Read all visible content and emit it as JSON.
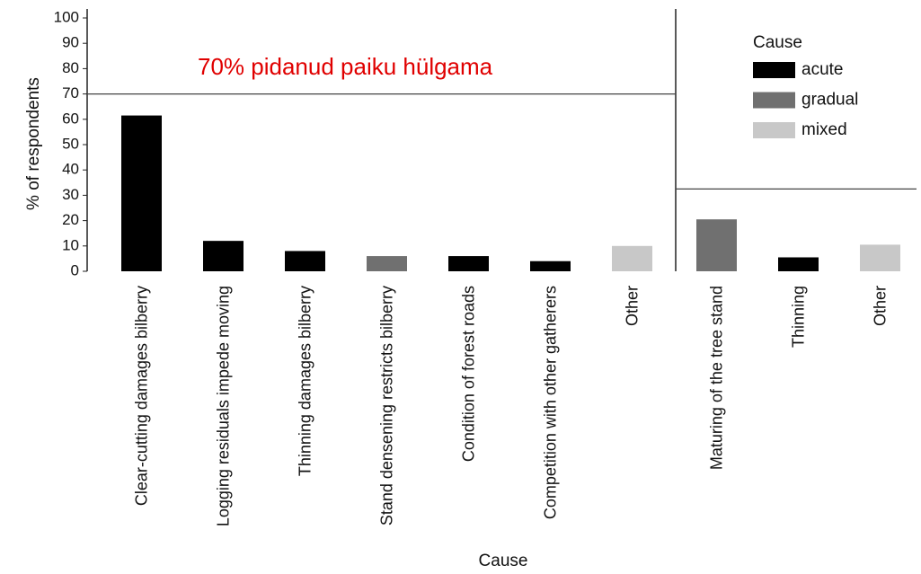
{
  "chart_data": {
    "type": "bar",
    "annotation": "70% pidanud paiku hülgama",
    "ylabel": "% of respondents",
    "xlabel": "Cause",
    "legend_title": "Cause",
    "groups": [
      {
        "reference": 70,
        "categories": [
          "Clear-cutting damages bilberry",
          "Logging residuals impede moving",
          "Thinning damages bilberry",
          "Stand densening restricts bilberry",
          "Condition of forest roads",
          "Competition with other gatherers",
          "Other"
        ]
      },
      {
        "reference": 32.5,
        "categories": [
          "Maturing of the tree stand",
          "Thinning",
          "Other"
        ]
      }
    ],
    "series": [
      {
        "name": "acute",
        "color": "#000000",
        "values": [
          61.5,
          12,
          8,
          null,
          6,
          4,
          null,
          null,
          5.5,
          null
        ]
      },
      {
        "name": "gradual",
        "color": "#707070",
        "values": [
          null,
          null,
          null,
          6,
          null,
          null,
          null,
          20.5,
          null,
          null
        ]
      },
      {
        "name": "mixed",
        "color": "#c8c8c8",
        "values": [
          null,
          null,
          null,
          null,
          null,
          null,
          10,
          null,
          null,
          10.5
        ]
      }
    ],
    "ylim": [
      0,
      100
    ],
    "yticks": [
      0,
      10,
      20,
      30,
      40,
      50,
      60,
      70,
      80,
      90,
      100
    ]
  }
}
